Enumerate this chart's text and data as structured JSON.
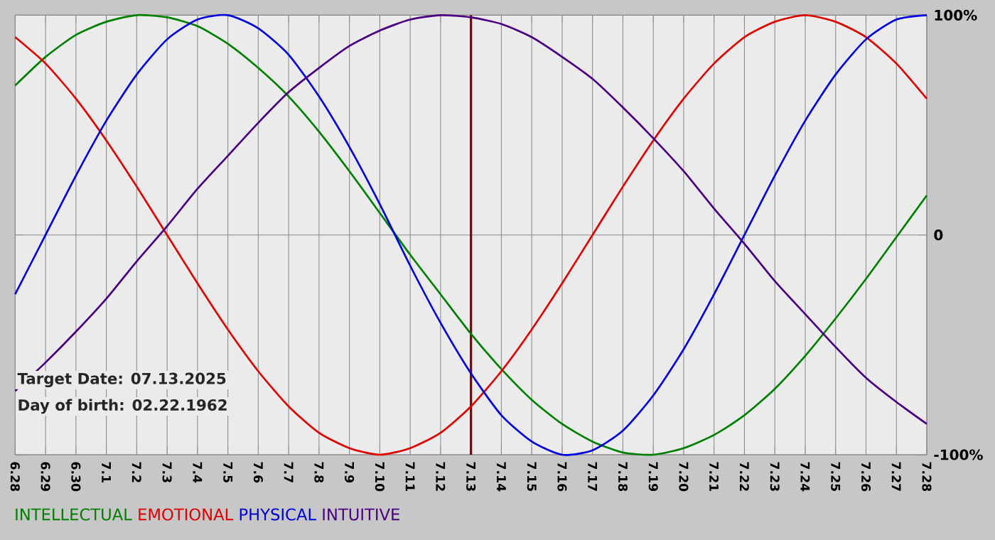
{
  "chart_data": {
    "type": "line",
    "annotations": [
      "Target Date: 07.13.2025",
      "Day of birth: 02.22.1962"
    ],
    "categories": [
      "6.28",
      "6.29",
      "6.30",
      "7.1",
      "7.2",
      "7.3",
      "7.4",
      "7.5",
      "7.6",
      "7.7",
      "7.8",
      "7.9",
      "7.10",
      "7.11",
      "7.12",
      "7.13",
      "7.14",
      "7.15",
      "7.16",
      "7.17",
      "7.18",
      "7.19",
      "7.20",
      "7.21",
      "7.22",
      "7.23",
      "7.24",
      "7.25",
      "7.26",
      "7.27",
      "7.28"
    ],
    "series": [
      {
        "name": "INTELLECTUAL",
        "color": "#008000",
        "values": [
          68,
          81,
          91,
          97,
          100,
          99,
          95,
          87,
          76,
          63,
          47,
          29,
          10,
          -9,
          -27,
          -45,
          -61,
          -75,
          -86,
          -94,
          -99,
          -100,
          -97,
          -91,
          -82,
          -70,
          -55,
          -38,
          -20,
          -1,
          18
        ]
      },
      {
        "name": "EMOTIONAL",
        "color": "#e00000",
        "values": [
          90,
          78,
          62,
          43,
          22,
          0,
          -22,
          -43,
          -62,
          -78,
          -90,
          -97,
          -100,
          -97,
          -90,
          -78,
          -62,
          -43,
          -22,
          0,
          22,
          43,
          62,
          78,
          90,
          97,
          100,
          97,
          90,
          78,
          62
        ]
      },
      {
        "name": "PHYSICAL",
        "color": "#0000e0",
        "values": [
          -27,
          0,
          27,
          52,
          73,
          89,
          98,
          100,
          94,
          82,
          63,
          40,
          14,
          -14,
          -40,
          -63,
          -82,
          -94,
          -100,
          -98,
          -89,
          -73,
          -52,
          -27,
          0,
          27,
          52,
          73,
          89,
          98,
          100
        ]
      },
      {
        "name": "INTUITIVE",
        "color": "#4b0082",
        "values": [
          -71,
          -58,
          -44,
          -29,
          -12,
          4,
          21,
          36,
          51,
          65,
          76,
          86,
          93,
          98,
          100,
          99,
          96,
          90,
          81,
          71,
          58,
          44,
          29,
          12,
          -4,
          -21,
          -36,
          -51,
          -65,
          -76,
          -86
        ]
      }
    ],
    "ylim": [
      -100,
      100
    ],
    "yticks": [
      {
        "value": -100,
        "label": "-100%"
      },
      0,
      {
        "value": 100,
        "label": "100%"
      }
    ],
    "ref_lines": [
      {
        "axis": "x",
        "value": "7.13",
        "color": "#800000"
      }
    ],
    "grid": true,
    "legend": "bottom left",
    "marker": "none",
    "line_style": "solid"
  }
}
